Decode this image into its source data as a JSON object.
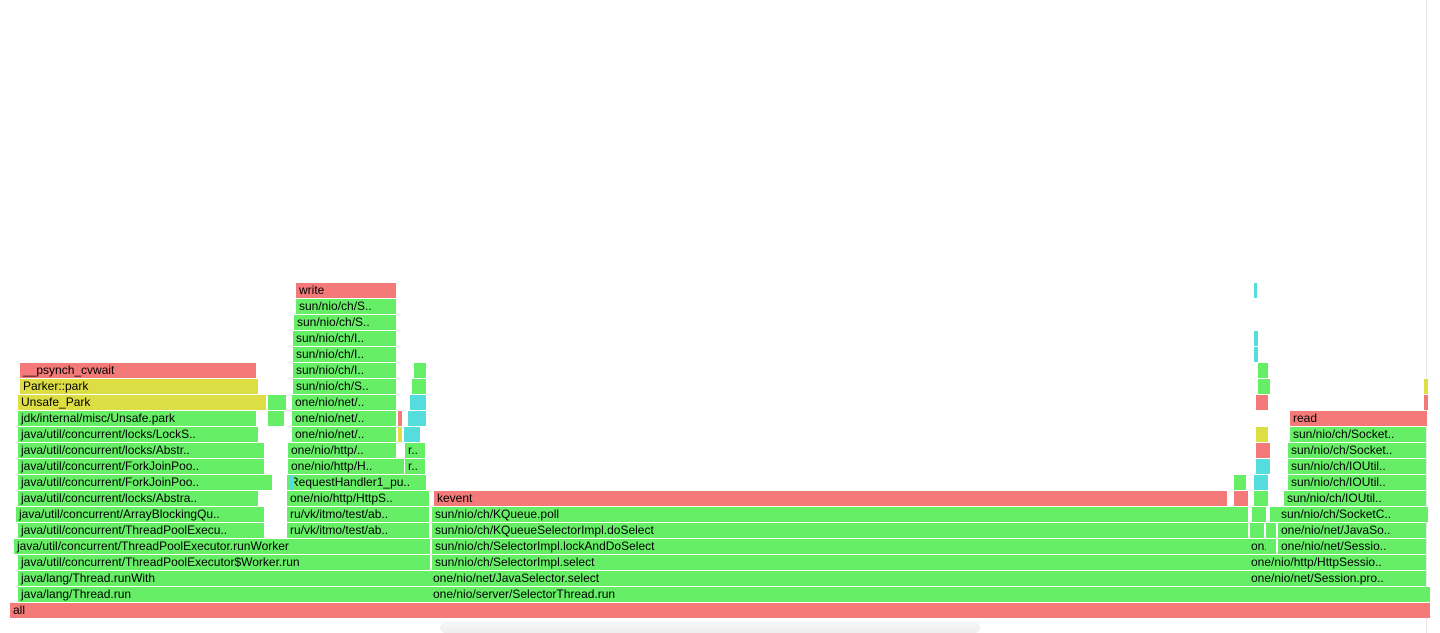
{
  "colors": {
    "red": "#f47a7a",
    "green": "#66ee66",
    "yellow": "#dddd44",
    "cyan": "#55dddd",
    "darkgreen": "#55cc55"
  },
  "frames": [
    {
      "label": "all",
      "c": "red"
    },
    {
      "label": "java/lang/Thread.run",
      "c": "green"
    },
    {
      "label": "java/lang/Thread.runWith",
      "c": "green"
    },
    {
      "label": "java/util/concurrent/ThreadPoolExecutor$Worker.run",
      "c": "green"
    },
    {
      "label": "java/util/concurrent/ThreadPoolExecutor.runWorker",
      "c": "green"
    },
    {
      "label": "java/util/concurrent/ThreadPoolExecu..",
      "c": "green"
    },
    {
      "label": "java/util/concurrent/ArrayBlockingQu..",
      "c": "green"
    },
    {
      "label": "java/util/concurrent/locks/Abstra..",
      "c": "green"
    },
    {
      "label": "java/util/concurrent/ForkJoinPoo..",
      "c": "green"
    },
    {
      "label": "java/util/concurrent/ForkJoinPoo..",
      "c": "green"
    },
    {
      "label": "java/util/concurrent/locks/Abstr..",
      "c": "green"
    },
    {
      "label": "java/util/concurrent/locks/LockS..",
      "c": "green"
    },
    {
      "label": "jdk/internal/misc/Unsafe.park",
      "c": "green"
    },
    {
      "label": "Unsafe_Park",
      "c": "yellow"
    },
    {
      "label": "Parker::park",
      "c": "yellow"
    },
    {
      "label": "__psynch_cvwait",
      "c": "red"
    },
    {
      "label": "ru/vk/itmo/test/ab..",
      "c": "green"
    },
    {
      "label": "ru/vk/itmo/test/ab..",
      "c": "green"
    },
    {
      "label": "one/nio/http/HttpS..",
      "c": "green"
    },
    {
      "label": "RequestHandler1_pu..",
      "c": "green"
    },
    {
      "label": "one/nio/http/H..",
      "c": "green"
    },
    {
      "label": "one/nio/http/..",
      "c": "green"
    },
    {
      "label": "one/nio/net/..",
      "c": "green"
    },
    {
      "label": "one/nio/net/..",
      "c": "green"
    },
    {
      "label": "one/nio/net/..",
      "c": "green"
    },
    {
      "label": "sun/nio/ch/S..",
      "c": "green"
    },
    {
      "label": "sun/nio/ch/I..",
      "c": "green"
    },
    {
      "label": "sun/nio/ch/I..",
      "c": "green"
    },
    {
      "label": "sun/nio/ch/I..",
      "c": "green"
    },
    {
      "label": "sun/nio/ch/S..",
      "c": "green"
    },
    {
      "label": "sun/nio/ch/S..",
      "c": "green"
    },
    {
      "label": "write",
      "c": "red"
    },
    {
      "label": "r..",
      "c": "green"
    },
    {
      "label": "r..",
      "c": "green"
    },
    {
      "label": "one/nio/server/SelectorThread.run",
      "c": "green"
    },
    {
      "label": "one/nio/net/JavaSelector.select",
      "c": "green"
    },
    {
      "label": "sun/nio/ch/SelectorImpl.select",
      "c": "green"
    },
    {
      "label": "sun/nio/ch/SelectorImpl.lockAndDoSelect",
      "c": "green"
    },
    {
      "label": "sun/nio/ch/KQueueSelectorImpl.doSelect",
      "c": "green"
    },
    {
      "label": "sun/nio/ch/KQueue.poll",
      "c": "green"
    },
    {
      "label": "kevent",
      "c": "red"
    },
    {
      "label": "one/nio/net/Session.pro..",
      "c": "green"
    },
    {
      "label": "one/nio/http/HttpSessio..",
      "c": "green"
    },
    {
      "label": "one/nio/net/Sessio..",
      "c": "green"
    },
    {
      "label": "one/nio/net/JavaSo..",
      "c": "green"
    },
    {
      "label": "sun/nio/ch/SocketC..",
      "c": "green"
    },
    {
      "label": "sun/nio/ch/IOUtil..",
      "c": "green"
    },
    {
      "label": "sun/nio/ch/IOUtil..",
      "c": "green"
    },
    {
      "label": "sun/nio/ch/IOUtil..",
      "c": "green"
    },
    {
      "label": "sun/nio/ch/Socket..",
      "c": "green"
    },
    {
      "label": "sun/nio/ch/Socket..",
      "c": "green"
    },
    {
      "label": "read",
      "c": "red"
    },
    {
      "label": "on..",
      "c": "green"
    },
    {
      "label": "",
      "c": "red"
    },
    {
      "label": "",
      "c": "green"
    },
    {
      "label": "",
      "c": "green"
    },
    {
      "label": "",
      "c": "cyan"
    },
    {
      "label": "",
      "c": "cyan"
    },
    {
      "label": "",
      "c": "cyan"
    },
    {
      "label": "",
      "c": "cyan"
    },
    {
      "label": "",
      "c": "green"
    },
    {
      "label": "",
      "c": "green"
    },
    {
      "label": "",
      "c": "yellow"
    },
    {
      "label": "",
      "c": "red"
    },
    {
      "label": "",
      "c": "green"
    },
    {
      "label": "",
      "c": "green"
    },
    {
      "label": "",
      "c": "green"
    },
    {
      "label": "",
      "c": "green"
    },
    {
      "label": "",
      "c": "green"
    },
    {
      "label": "",
      "c": "green"
    },
    {
      "label": "",
      "c": "cyan"
    },
    {
      "label": "",
      "c": "cyan"
    },
    {
      "label": "",
      "c": "red"
    },
    {
      "label": "",
      "c": "green"
    },
    {
      "label": "",
      "c": "red"
    },
    {
      "label": "",
      "c": "yellow"
    },
    {
      "label": "",
      "c": "red"
    },
    {
      "label": "",
      "c": "green"
    },
    {
      "label": "",
      "c": "green"
    },
    {
      "label": "",
      "c": "cyan"
    },
    {
      "label": "",
      "c": "cyan"
    },
    {
      "label": "",
      "c": "cyan"
    },
    {
      "label": "",
      "c": "green"
    },
    {
      "label": "",
      "c": "green"
    },
    {
      "label": "",
      "c": "green"
    },
    {
      "label": "",
      "c": "red"
    },
    {
      "label": "",
      "c": "red"
    },
    {
      "label": "",
      "c": "yellow"
    }
  ]
}
